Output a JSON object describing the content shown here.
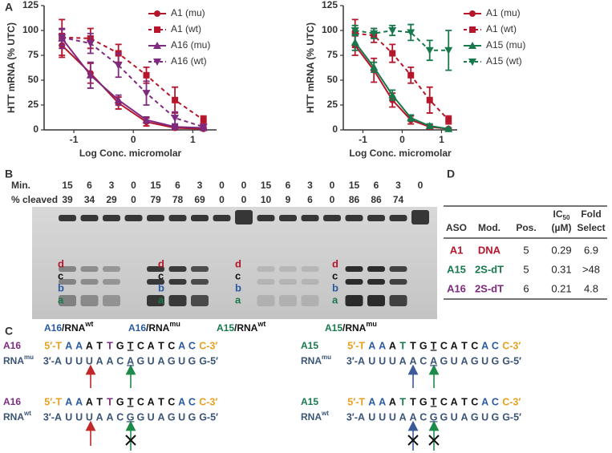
{
  "chart_data": [
    {
      "type": "line",
      "y_label": "HTT mRNA (% UTC)",
      "x_label": "Log Conc. micromolar",
      "x": [
        -1.2,
        -0.72,
        -0.25,
        0.22,
        0.7,
        1.18
      ],
      "xlim": [
        -1.5,
        1.4
      ],
      "xticks": [
        -1,
        0,
        1
      ],
      "ylim": [
        0,
        125
      ],
      "yticks": [
        0,
        25,
        50,
        75,
        100,
        125
      ],
      "legend": "upper right",
      "series": [
        {
          "name": "A1 (mu)",
          "color": "#b5162b",
          "marker": "circle",
          "dash": false,
          "values": [
            85,
            57,
            27,
            8,
            2,
            1
          ],
          "errors": [
            12,
            10,
            6,
            4,
            2,
            1
          ]
        },
        {
          "name": "A1 (wt)",
          "color": "#b5162b",
          "marker": "square",
          "dash": true,
          "values": [
            93,
            92,
            77,
            55,
            30,
            10
          ],
          "errors": [
            18,
            10,
            9,
            8,
            13,
            4
          ]
        },
        {
          "name": "A16 (mu)",
          "color": "#7e2a7e",
          "marker": "triangle-up",
          "dash": false,
          "values": [
            92,
            55,
            30,
            10,
            3,
            2
          ],
          "errors": [
            10,
            13,
            5,
            3,
            2,
            1
          ]
        },
        {
          "name": "A16 (wt)",
          "color": "#7e2a7e",
          "marker": "triangle-down",
          "dash": true,
          "values": [
            93,
            87,
            65,
            37,
            12,
            3
          ],
          "errors": [
            8,
            10,
            12,
            12,
            6,
            2
          ]
        }
      ]
    },
    {
      "type": "line",
      "y_label": "HTT mRNA (% UTC)",
      "x_label": "Log Conc. micromolar",
      "x": [
        -1.2,
        -0.72,
        -0.25,
        0.22,
        0.7,
        1.18
      ],
      "xlim": [
        -1.5,
        1.4
      ],
      "xticks": [
        -1,
        0,
        1
      ],
      "ylim": [
        0,
        125
      ],
      "yticks": [
        0,
        25,
        50,
        75,
        100,
        125
      ],
      "legend": "right",
      "series": [
        {
          "name": "A1 (mu)",
          "color": "#b5162b",
          "marker": "circle",
          "dash": false,
          "values": [
            85,
            60,
            30,
            10,
            3,
            1
          ],
          "errors": [
            10,
            12,
            7,
            4,
            2,
            1
          ]
        },
        {
          "name": "A1 (wt)",
          "color": "#b5162b",
          "marker": "square",
          "dash": true,
          "values": [
            97,
            95,
            77,
            55,
            30,
            10
          ],
          "errors": [
            14,
            7,
            9,
            8,
            13,
            4
          ]
        },
        {
          "name": "A15 (mu)",
          "color": "#187a4c",
          "marker": "triangle-up",
          "dash": false,
          "values": [
            88,
            63,
            35,
            12,
            4,
            1
          ],
          "errors": [
            8,
            5,
            5,
            3,
            2,
            1
          ]
        },
        {
          "name": "A15 (wt)",
          "color": "#187a4c",
          "marker": "triangle-down",
          "dash": true,
          "values": [
            100,
            97,
            100,
            98,
            80,
            80
          ],
          "errors": [
            5,
            5,
            5,
            8,
            10,
            20
          ]
        }
      ]
    }
  ],
  "panel_labels": [
    "A",
    "B",
    "C",
    "D"
  ],
  "gel": {
    "min_label": "Min.",
    "cleaved_label": "% cleaved",
    "minutes": [
      15,
      6,
      3,
      0,
      15,
      6,
      3,
      0,
      0,
      15,
      6,
      3,
      0,
      15,
      6,
      3,
      0
    ],
    "cleaved": [
      39,
      34,
      29,
      0,
      79,
      78,
      69,
      0,
      0,
      10,
      9,
      6,
      0,
      86,
      86,
      74,
      null
    ],
    "band_colors": [
      "#b5162b",
      "#111111",
      "#2a5aa0",
      "#187a4c"
    ],
    "groups": [
      {
        "bands": [
          "d",
          "c",
          "b",
          "a"
        ],
        "aso": "A16",
        "aso_color": "#2a5aa0",
        "rna": "/RNA",
        "variant": "wt"
      },
      {
        "bands": [
          "d",
          "c",
          "b",
          "a"
        ],
        "aso": "A16",
        "aso_color": "#2a5aa0",
        "rna": "/RNA",
        "variant": "mu"
      },
      {
        "bands": [
          "d",
          "c",
          "b",
          "a"
        ],
        "aso": "A15",
        "aso_color": "#187a4c",
        "rna": "/RNA",
        "variant": "wt"
      },
      {
        "bands": [
          "d",
          "c",
          "b",
          "a"
        ],
        "aso": "A15",
        "aso_color": "#187a4c",
        "rna": "/RNA",
        "variant": "mu"
      }
    ]
  },
  "table": {
    "header": [
      "ASO",
      "Mod.",
      "Pos.",
      {
        "line1": "IC",
        "sub": "50",
        "line2": "(µM)"
      },
      {
        "line1": "Fold",
        "line2": "Select"
      }
    ],
    "rows": [
      [
        "A1",
        "DNA",
        5,
        0.29,
        6.9
      ],
      [
        "A15",
        "2S-dT",
        5,
        0.31,
        ">48"
      ],
      [
        "A16",
        "2S-dT",
        6,
        0.21,
        4.8
      ]
    ],
    "row_colors": [
      "#b5162b",
      "#187a4c",
      "#7e2a7e"
    ]
  },
  "sequences": [
    {
      "aso": "A16",
      "aso_color": "#7e2a7e",
      "rna": "RNA",
      "variant": "mu",
      "top": [
        "5′-T",
        "A",
        "A",
        "A",
        "T",
        "T",
        "G",
        "T",
        "C",
        "A",
        "T",
        "C",
        "A",
        "C",
        "C-3′"
      ],
      "top_colors": [
        "#e8a020",
        "#2a5aa0",
        "#2a5aa0",
        "#111111",
        "#111111",
        "#7e2a7e",
        "#111111",
        "#111111",
        "#111111",
        "#111111",
        "#111111",
        "#111111",
        "#2a5aa0",
        "#2a5aa0",
        "#e8a020"
      ],
      "bottom": [
        "3′-A",
        "U",
        "U",
        "U",
        "A",
        "A",
        "C",
        "A",
        "G",
        "U",
        "A",
        "G",
        "U",
        "G",
        "G-5′"
      ],
      "bottom_color": "#3a5478"
    },
    {
      "aso": "A15",
      "aso_color": "#187a4c",
      "rna": "RNA",
      "variant": "mu",
      "top": [
        "5′-T",
        "A",
        "A",
        "A",
        "T",
        "T",
        "G",
        "T",
        "C",
        "A",
        "T",
        "C",
        "A",
        "C",
        "C-3′"
      ],
      "top_colors": [
        "#e8a020",
        "#2a5aa0",
        "#2a5aa0",
        "#111111",
        "#187a4c",
        "#111111",
        "#111111",
        "#111111",
        "#111111",
        "#111111",
        "#111111",
        "#111111",
        "#2a5aa0",
        "#2a5aa0",
        "#e8a020"
      ],
      "bottom": [
        "3′-A",
        "U",
        "U",
        "U",
        "A",
        "A",
        "C",
        "A",
        "G",
        "U",
        "A",
        "G",
        "U",
        "G",
        "G-5′"
      ],
      "bottom_color": "#3a5478"
    },
    {
      "aso": "A16",
      "aso_color": "#7e2a7e",
      "rna": "RNA",
      "variant": "wt",
      "top": [
        "5′-T",
        "A",
        "A",
        "A",
        "T",
        "T",
        "G",
        "T",
        "C",
        "A",
        "T",
        "C",
        "A",
        "C",
        "C-3′"
      ],
      "top_colors": [
        "#e8a020",
        "#2a5aa0",
        "#2a5aa0",
        "#111111",
        "#111111",
        "#7e2a7e",
        "#111111",
        "#111111",
        "#111111",
        "#111111",
        "#111111",
        "#111111",
        "#2a5aa0",
        "#2a5aa0",
        "#e8a020"
      ],
      "bottom": [
        "3′-A",
        "U",
        "U",
        "U",
        "A",
        "A",
        "C",
        "G",
        "G",
        "U",
        "A",
        "G",
        "U",
        "G",
        "G-5′"
      ],
      "bottom_color": "#3a5478"
    },
    {
      "aso": "A15",
      "aso_color": "#187a4c",
      "rna": "RNA",
      "variant": "wt",
      "top": [
        "5′-T",
        "A",
        "A",
        "A",
        "T",
        "T",
        "G",
        "T",
        "C",
        "A",
        "T",
        "C",
        "A",
        "C",
        "C-3′"
      ],
      "top_colors": [
        "#e8a020",
        "#2a5aa0",
        "#2a5aa0",
        "#111111",
        "#187a4c",
        "#111111",
        "#111111",
        "#111111",
        "#111111",
        "#111111",
        "#111111",
        "#111111",
        "#2a5aa0",
        "#2a5aa0",
        "#e8a020"
      ],
      "bottom": [
        "3′-A",
        "U",
        "U",
        "U",
        "A",
        "A",
        "C",
        "G",
        "G",
        "U",
        "A",
        "G",
        "U",
        "G",
        "G-5′"
      ],
      "bottom_color": "#3a5478"
    }
  ]
}
